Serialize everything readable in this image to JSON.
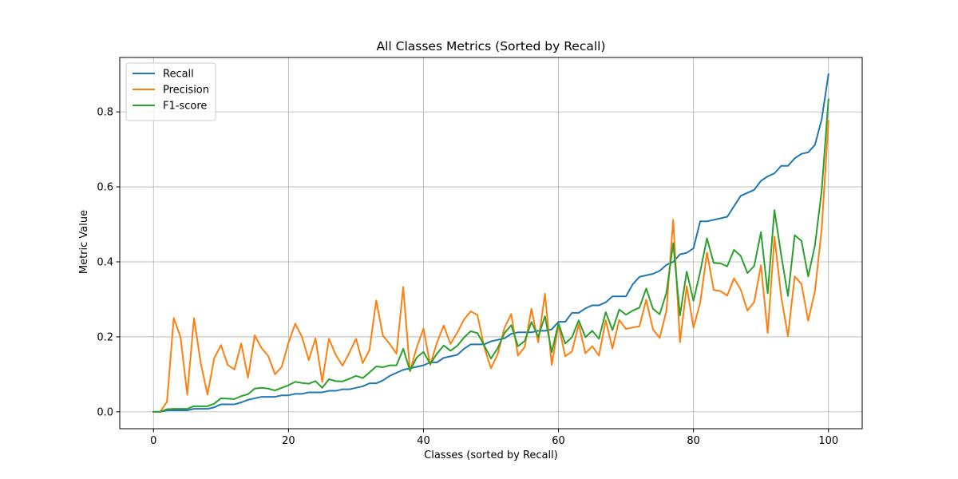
{
  "chart_data": {
    "type": "line",
    "title": "All Classes Metrics (Sorted by Recall)",
    "xlabel": "Classes (sorted by Recall)",
    "ylabel": "Metric Value",
    "xlim": [
      -5,
      105
    ],
    "ylim": [
      -0.045,
      0.945
    ],
    "xticks": [
      0,
      20,
      40,
      60,
      80,
      100
    ],
    "yticks": [
      0.0,
      0.2,
      0.4,
      0.6,
      0.8
    ],
    "xtick_labels": [
      "0",
      "20",
      "40",
      "60",
      "80",
      "100"
    ],
    "ytick_labels": [
      "0.0",
      "0.2",
      "0.4",
      "0.6",
      "0.8"
    ],
    "grid": true,
    "legend_position": "upper-left",
    "x": [
      0,
      1,
      2,
      3,
      4,
      5,
      6,
      7,
      8,
      9,
      10,
      11,
      12,
      13,
      14,
      15,
      16,
      17,
      18,
      19,
      20,
      21,
      22,
      23,
      24,
      25,
      26,
      27,
      28,
      29,
      30,
      31,
      32,
      33,
      34,
      35,
      36,
      37,
      38,
      39,
      40,
      41,
      42,
      43,
      44,
      45,
      46,
      47,
      48,
      49,
      50,
      51,
      52,
      53,
      54,
      55,
      56,
      57,
      58,
      59,
      60,
      61,
      62,
      63,
      64,
      65,
      66,
      67,
      68,
      69,
      70,
      71,
      72,
      73,
      74,
      75,
      76,
      77,
      78,
      79,
      80,
      81,
      82,
      83,
      84,
      85,
      86,
      87,
      88,
      89,
      90,
      91,
      92,
      93,
      94,
      95,
      96,
      97,
      98,
      99,
      100
    ],
    "series": [
      {
        "name": "Recall",
        "color": "#1f77b4",
        "values": [
          0.0,
          0.0,
          0.004,
          0.004,
          0.004,
          0.004,
          0.008,
          0.008,
          0.008,
          0.012,
          0.02,
          0.02,
          0.02,
          0.025,
          0.032,
          0.036,
          0.04,
          0.04,
          0.04,
          0.044,
          0.044,
          0.048,
          0.048,
          0.052,
          0.052,
          0.052,
          0.056,
          0.056,
          0.06,
          0.06,
          0.064,
          0.068,
          0.076,
          0.076,
          0.084,
          0.096,
          0.104,
          0.112,
          0.116,
          0.12,
          0.124,
          0.132,
          0.132,
          0.144,
          0.148,
          0.152,
          0.168,
          0.18,
          0.18,
          0.18,
          0.188,
          0.192,
          0.196,
          0.208,
          0.212,
          0.212,
          0.212,
          0.216,
          0.216,
          0.22,
          0.24,
          0.24,
          0.264,
          0.264,
          0.276,
          0.284,
          0.284,
          0.292,
          0.308,
          0.308,
          0.308,
          0.34,
          0.36,
          0.364,
          0.368,
          0.376,
          0.392,
          0.4,
          0.42,
          0.424,
          0.436,
          0.508,
          0.508,
          0.512,
          0.516,
          0.52,
          0.548,
          0.576,
          0.584,
          0.592,
          0.616,
          0.628,
          0.636,
          0.656,
          0.656,
          0.676,
          0.688,
          0.692,
          0.712,
          0.78,
          0.9
        ]
      },
      {
        "name": "Precision",
        "color": "#ff7f0e",
        "values": [
          0.0,
          0.0,
          0.027,
          0.25,
          0.2,
          0.046,
          0.25,
          0.13,
          0.046,
          0.143,
          0.178,
          0.125,
          0.113,
          0.182,
          0.091,
          0.204,
          0.17,
          0.149,
          0.1,
          0.12,
          0.184,
          0.235,
          0.2,
          0.138,
          0.196,
          0.08,
          0.195,
          0.152,
          0.123,
          0.157,
          0.195,
          0.13,
          0.165,
          0.297,
          0.203,
          0.181,
          0.155,
          0.333,
          0.108,
          0.172,
          0.222,
          0.125,
          0.185,
          0.23,
          0.181,
          0.211,
          0.246,
          0.268,
          0.258,
          0.172,
          0.116,
          0.154,
          0.224,
          0.261,
          0.15,
          0.173,
          0.275,
          0.185,
          0.315,
          0.125,
          0.233,
          0.148,
          0.161,
          0.233,
          0.156,
          0.175,
          0.15,
          0.244,
          0.169,
          0.245,
          0.221,
          0.225,
          0.228,
          0.299,
          0.22,
          0.197,
          0.27,
          0.512,
          0.186,
          0.335,
          0.224,
          0.291,
          0.425,
          0.325,
          0.322,
          0.31,
          0.356,
          0.326,
          0.27,
          0.293,
          0.391,
          0.21,
          0.467,
          0.307,
          0.202,
          0.361,
          0.341,
          0.243,
          0.322,
          0.488,
          0.775
        ]
      },
      {
        "name": "F1-score",
        "color": "#2ca02c",
        "values": [
          0.0,
          0.0,
          0.007,
          0.008,
          0.008,
          0.008,
          0.015,
          0.015,
          0.015,
          0.022,
          0.036,
          0.035,
          0.034,
          0.042,
          0.047,
          0.062,
          0.064,
          0.062,
          0.057,
          0.064,
          0.071,
          0.08,
          0.077,
          0.075,
          0.082,
          0.064,
          0.087,
          0.082,
          0.081,
          0.088,
          0.096,
          0.09,
          0.105,
          0.121,
          0.119,
          0.124,
          0.124,
          0.168,
          0.11,
          0.145,
          0.16,
          0.128,
          0.155,
          0.177,
          0.163,
          0.176,
          0.198,
          0.215,
          0.21,
          0.177,
          0.142,
          0.17,
          0.21,
          0.231,
          0.175,
          0.189,
          0.24,
          0.2,
          0.255,
          0.159,
          0.236,
          0.182,
          0.199,
          0.244,
          0.199,
          0.216,
          0.195,
          0.266,
          0.218,
          0.273,
          0.259,
          0.27,
          0.278,
          0.329,
          0.275,
          0.26,
          0.318,
          0.45,
          0.257,
          0.374,
          0.296,
          0.374,
          0.463,
          0.397,
          0.396,
          0.388,
          0.432,
          0.416,
          0.37,
          0.389,
          0.479,
          0.316,
          0.538,
          0.418,
          0.309,
          0.471,
          0.456,
          0.361,
          0.444,
          0.59,
          0.833
        ]
      }
    ]
  }
}
